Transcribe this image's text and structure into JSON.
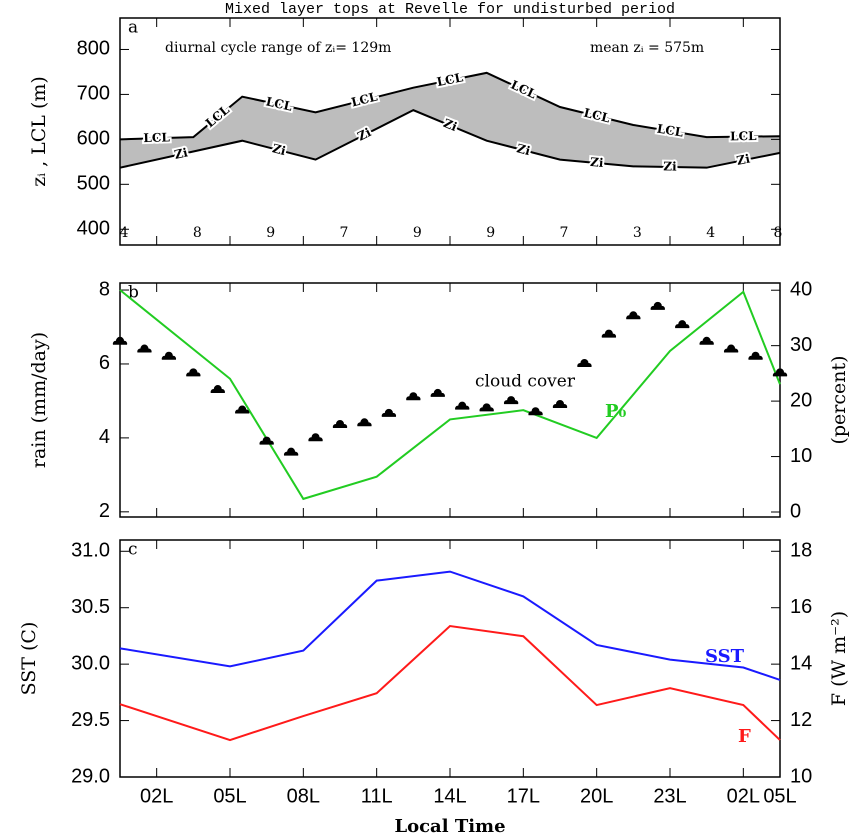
{
  "chart_data": [
    {
      "type": "line",
      "title": "Mixed layer tops at Revelle for undisturbed period",
      "panel_label": "a",
      "ylabel": "zᵢ , LCL (m)",
      "annotations": [
        "diurnal cycle range of zᵢ= 129m",
        "mean zᵢ = 575m"
      ],
      "xlim": [
        0.5,
        27.5
      ],
      "ylim": [
        365,
        870
      ],
      "yticks": [
        400,
        500,
        600,
        700,
        800
      ],
      "fill_between": true,
      "fill_color": "#bdbdbd",
      "series": [
        {
          "name": "LCL",
          "color": "#000000",
          "x": [
            0.5,
            3.5,
            5.5,
            8.5,
            12.5,
            15.5,
            18.5,
            21.5,
            24.5,
            27.5
          ],
          "values": [
            600,
            605,
            695,
            660,
            715,
            748,
            672,
            632,
            605,
            607
          ]
        },
        {
          "name": "Zi",
          "color": "#000000",
          "x": [
            0.5,
            5.5,
            8.5,
            12.5,
            15.5,
            18.5,
            21.5,
            24.5,
            27.5
          ],
          "values": [
            537,
            597,
            555,
            665,
            597,
            555,
            540,
            537,
            570
          ]
        }
      ],
      "sample_counts": {
        "x": [
          0.5,
          3.5,
          6.5,
          9.5,
          12.5,
          15.5,
          18.5,
          21.5,
          24.5,
          27.5
        ],
        "values": [
          4,
          8,
          9,
          7,
          9,
          9,
          7,
          3,
          4,
          8
        ]
      }
    },
    {
      "type": "line",
      "panel_label": "b",
      "ylabel": "rain (mm/day)",
      "y2label": "(percent)",
      "xlim": [
        0.5,
        27.5
      ],
      "ylim": [
        1.86,
        8.19
      ],
      "yticks": [
        2,
        4,
        6,
        8
      ],
      "y2lim": [
        -0.9,
        41.3
      ],
      "y2ticks": [
        0,
        10,
        20,
        30,
        40
      ],
      "series": [
        {
          "name": "P₀",
          "color": "#22cc22",
          "x": [
            0.5,
            5,
            8,
            11,
            14,
            17,
            20,
            23,
            26,
            27.5
          ],
          "values": [
            8.0,
            5.6,
            2.35,
            2.95,
            4.5,
            4.75,
            4.0,
            6.35,
            7.95,
            5.45
          ]
        },
        {
          "name": "cloud cover",
          "color": "#000000",
          "axis": "y2",
          "marker": "cloud",
          "x": [
            0.5,
            1.5,
            2.5,
            3.5,
            4.5,
            5.5,
            6.5,
            7.5,
            8.5,
            9.5,
            10.5,
            11.5,
            12.5,
            13.5,
            14.5,
            15.5,
            16.5,
            17.5,
            18.5,
            19.5,
            20.5,
            21.5,
            22.5,
            23.5,
            24.5,
            25.5,
            26.5,
            27.5
          ],
          "values": [
            30.7,
            29.3,
            28,
            25,
            22,
            18.3,
            12.7,
            10.7,
            13.3,
            15.7,
            16,
            17.7,
            20.7,
            21.3,
            19,
            18.7,
            20,
            18,
            19.3,
            26.7,
            32,
            35.3,
            37,
            33.7,
            30.7,
            29.3,
            28,
            25
          ]
        }
      ]
    },
    {
      "type": "line",
      "panel_label": "c",
      "ylabel": "SST (C)",
      "y2label": "F (W m⁻²)",
      "xlabel": "Local Time",
      "xlim": [
        0.5,
        27.5
      ],
      "xticks": [
        {
          "value": 2,
          "label": "02L"
        },
        {
          "value": 5,
          "label": "05L"
        },
        {
          "value": 8,
          "label": "08L"
        },
        {
          "value": 11,
          "label": "11L"
        },
        {
          "value": 14,
          "label": "14L"
        },
        {
          "value": 17,
          "label": "17L"
        },
        {
          "value": 20,
          "label": "20L"
        },
        {
          "value": 23,
          "label": "23L"
        },
        {
          "value": 26,
          "label": "02L"
        },
        {
          "value": 27.5,
          "label": "05L"
        }
      ],
      "ylim": [
        29.0,
        31.1
      ],
      "yticks": [
        {
          "value": 29,
          "label": "29.0"
        },
        29.5,
        {
          "value": 30,
          "label": "30.0"
        },
        30.5,
        {
          "value": 31,
          "label": "31.0"
        }
      ],
      "y2lim": [
        10,
        18.4
      ],
      "y2ticks": [
        10,
        12,
        14,
        16,
        18
      ],
      "series": [
        {
          "name": "SST",
          "color": "#1a1aff",
          "x": [
            0.5,
            5,
            8,
            11,
            14,
            17,
            20,
            23,
            26,
            27.5
          ],
          "values": [
            30.14,
            29.98,
            30.12,
            30.74,
            30.82,
            30.6,
            30.17,
            30.04,
            29.97,
            29.86
          ]
        },
        {
          "name": "F",
          "color": "#ff1a1a",
          "axis": "y2",
          "x": [
            0.5,
            5,
            8,
            11,
            14,
            17,
            20,
            23,
            26,
            27.5
          ],
          "values": [
            12.58,
            11.31,
            12.16,
            12.97,
            15.35,
            14.99,
            12.55,
            13.15,
            12.55,
            11.31
          ]
        }
      ]
    }
  ]
}
